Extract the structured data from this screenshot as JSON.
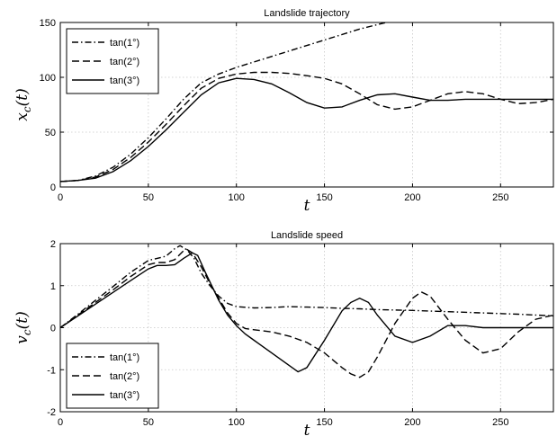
{
  "chart_data": [
    {
      "type": "line",
      "title": "Landslide trajectory",
      "xlabel": "t",
      "ylabel": "x_c(t)",
      "xlim": [
        0,
        280
      ],
      "ylim": [
        0,
        150
      ],
      "xticks": [
        0,
        50,
        100,
        150,
        200,
        250
      ],
      "yticks": [
        0,
        50,
        100,
        150
      ],
      "grid": true,
      "legend_position": "top-left",
      "series": [
        {
          "name": "tan(1°)",
          "dash": "dashdot",
          "x": [
            0,
            10,
            20,
            30,
            40,
            50,
            60,
            70,
            80,
            90,
            100,
            110,
            120,
            130,
            140,
            150,
            160,
            170,
            180,
            185
          ],
          "y": [
            5,
            6,
            10,
            18,
            30,
            45,
            62,
            80,
            95,
            103,
            109,
            114,
            119,
            124,
            129,
            134,
            139,
            144,
            148,
            150
          ]
        },
        {
          "name": "tan(2°)",
          "dash": "dashed",
          "x": [
            0,
            10,
            20,
            30,
            40,
            50,
            60,
            70,
            80,
            90,
            100,
            110,
            120,
            130,
            140,
            150,
            160,
            170,
            180,
            190,
            200,
            210,
            220,
            230,
            240,
            250,
            260,
            270,
            280
          ],
          "y": [
            5,
            6,
            9,
            16,
            27,
            41,
            57,
            74,
            90,
            99,
            103,
            104.5,
            104.5,
            103.5,
            101.5,
            99,
            94,
            85,
            75,
            71,
            73,
            79,
            85,
            87,
            85,
            80,
            76,
            77,
            80
          ]
        },
        {
          "name": "tan(3°)",
          "dash": "solid",
          "x": [
            0,
            10,
            20,
            30,
            40,
            50,
            60,
            70,
            80,
            90,
            100,
            110,
            120,
            130,
            140,
            150,
            160,
            170,
            180,
            190,
            200,
            210,
            220,
            230,
            240,
            250,
            260,
            270,
            280
          ],
          "y": [
            5,
            6,
            8,
            14,
            24,
            37,
            52,
            68,
            84,
            95,
            99,
            98,
            94,
            86,
            77,
            72,
            73,
            79,
            84,
            85,
            82,
            79,
            79,
            80,
            80,
            80,
            80,
            80,
            80
          ]
        }
      ]
    },
    {
      "type": "line",
      "title": "Landslide speed",
      "xlabel": "t",
      "ylabel": "v_c(t)",
      "xlim": [
        0,
        280
      ],
      "ylim": [
        -2,
        2
      ],
      "xticks": [
        0,
        50,
        100,
        150,
        200,
        250
      ],
      "yticks": [
        -2,
        -1,
        0,
        1,
        2
      ],
      "grid": true,
      "legend_position": "bottom-left",
      "series": [
        {
          "name": "tan(1°)",
          "dash": "dashdot",
          "x": [
            0,
            10,
            20,
            30,
            40,
            50,
            55,
            60,
            65,
            68,
            72,
            76,
            80,
            85,
            90,
            95,
            100,
            110,
            120,
            130,
            140,
            150,
            160,
            170,
            180,
            200,
            220,
            240,
            260,
            280
          ],
          "y": [
            0,
            0.32,
            0.65,
            0.98,
            1.32,
            1.6,
            1.65,
            1.7,
            1.88,
            1.95,
            1.85,
            1.65,
            1.3,
            1.0,
            0.75,
            0.58,
            0.5,
            0.47,
            0.48,
            0.5,
            0.49,
            0.48,
            0.46,
            0.45,
            0.43,
            0.41,
            0.38,
            0.35,
            0.32,
            0.28
          ]
        },
        {
          "name": "tan(2°)",
          "dash": "dashed",
          "x": [
            0,
            10,
            20,
            30,
            40,
            50,
            55,
            60,
            65,
            70,
            72,
            75,
            80,
            85,
            90,
            95,
            100,
            105,
            110,
            120,
            130,
            140,
            150,
            160,
            165,
            170,
            175,
            180,
            190,
            200,
            205,
            210,
            220,
            230,
            240,
            250,
            260,
            270,
            280
          ],
          "y": [
            0,
            0.3,
            0.6,
            0.9,
            1.22,
            1.5,
            1.55,
            1.55,
            1.62,
            1.83,
            1.86,
            1.78,
            1.45,
            1.05,
            0.7,
            0.35,
            0.1,
            -0.02,
            -0.05,
            -0.1,
            -0.2,
            -0.35,
            -0.6,
            -0.95,
            -1.1,
            -1.18,
            -1.05,
            -0.7,
            0.1,
            0.7,
            0.85,
            0.75,
            0.2,
            -0.3,
            -0.6,
            -0.5,
            -0.1,
            0.2,
            0.3
          ]
        },
        {
          "name": "tan(3°)",
          "dash": "solid",
          "x": [
            0,
            10,
            20,
            30,
            40,
            50,
            55,
            60,
            65,
            70,
            75,
            78,
            82,
            86,
            90,
            95,
            100,
            105,
            110,
            120,
            130,
            135,
            140,
            150,
            160,
            165,
            170,
            175,
            180,
            190,
            200,
            210,
            220,
            230,
            240,
            250,
            260,
            270,
            280
          ],
          "y": [
            0,
            0.28,
            0.56,
            0.84,
            1.12,
            1.4,
            1.48,
            1.48,
            1.5,
            1.65,
            1.78,
            1.72,
            1.35,
            1.0,
            0.65,
            0.3,
            0.05,
            -0.15,
            -0.3,
            -0.6,
            -0.9,
            -1.05,
            -0.95,
            -0.3,
            0.4,
            0.6,
            0.7,
            0.6,
            0.3,
            -0.2,
            -0.35,
            -0.2,
            0.05,
            0.05,
            0,
            0,
            0,
            0,
            0
          ]
        }
      ]
    }
  ]
}
